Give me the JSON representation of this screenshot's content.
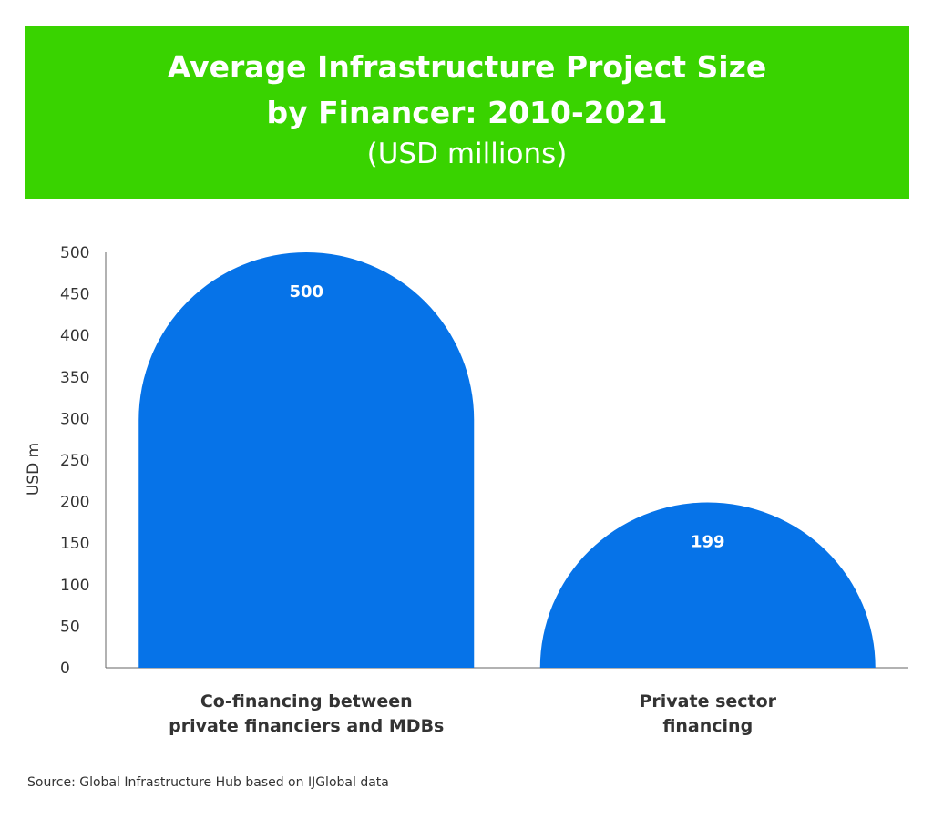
{
  "chart_data": {
    "type": "bar",
    "title_lines": [
      "Average Infrastructure Project Size",
      "by Financer: 2010-2021"
    ],
    "subtitle": "(USD millions)",
    "ylabel": "USD m",
    "xlabel": "",
    "ylim": [
      0,
      500
    ],
    "yticks": [
      0,
      50,
      100,
      150,
      200,
      250,
      300,
      350,
      400,
      450,
      500
    ],
    "categories": [
      [
        "Co-financing between",
        "private financiers and MDBs"
      ],
      [
        "Private sector",
        "financing"
      ]
    ],
    "values": [
      500,
      199
    ],
    "data_labels": [
      "500",
      "199"
    ],
    "bar_color": "#0673e8",
    "grid": false
  },
  "banner_color": "#39d300",
  "source": "Source: Global Infrastructure Hub based on IJGlobal data"
}
